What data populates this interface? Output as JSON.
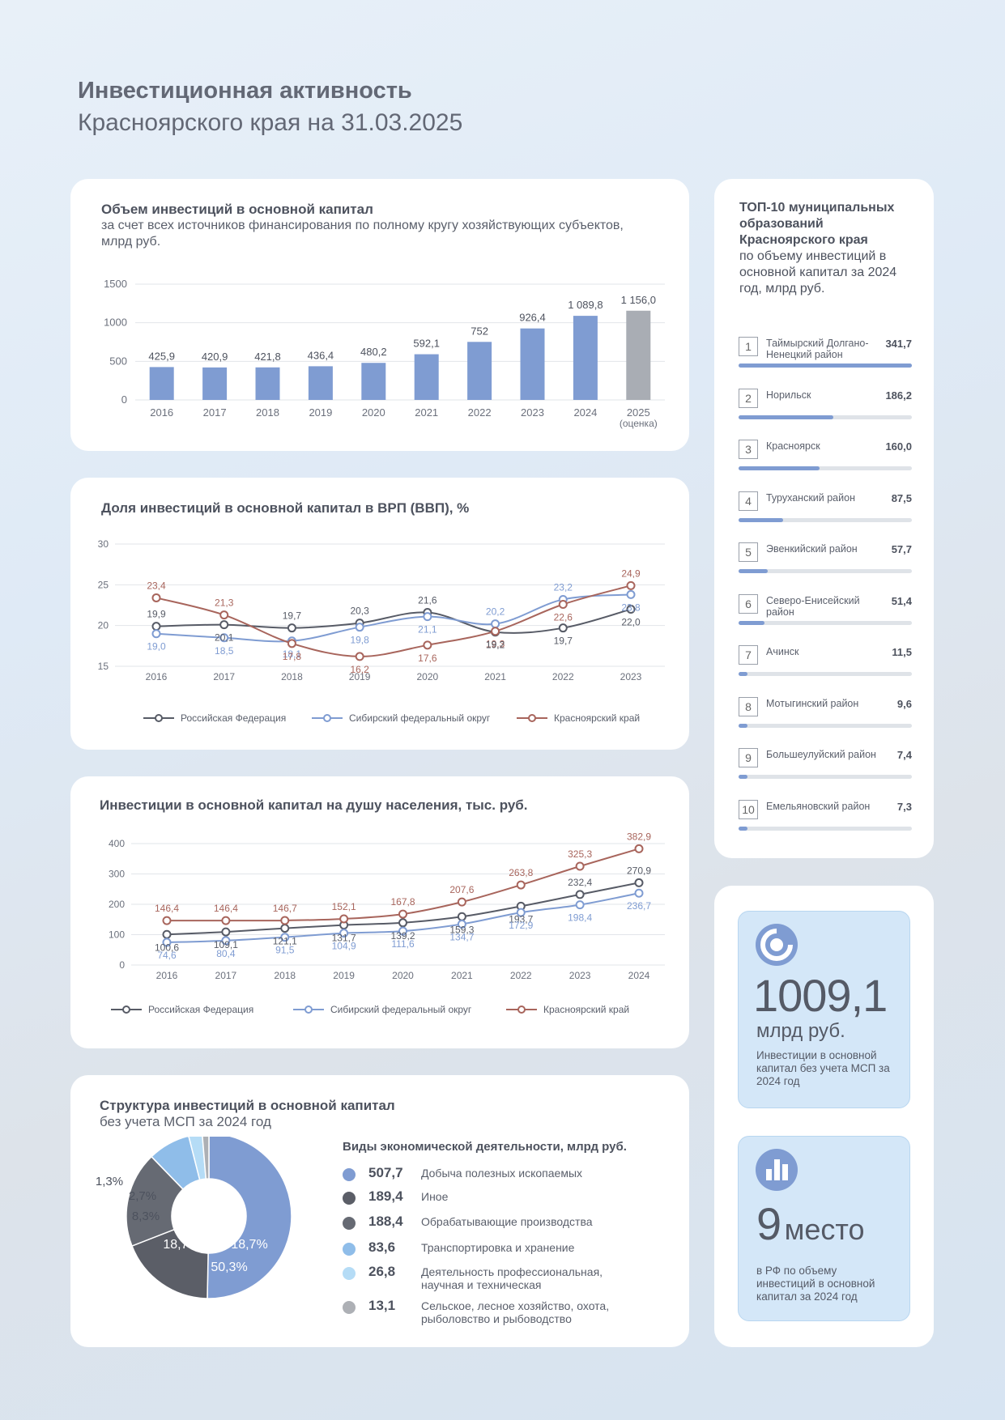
{
  "header": {
    "title_bold": "Инвестиционная активность",
    "title_regular": "Красноярского края на 31.03.2025"
  },
  "colors": {
    "bar": "#7f9cd2",
    "bar_estimate": "#a9adb4",
    "rf": "#575b66",
    "sfo": "#7f9cd2",
    "kk": "#a8655c",
    "pie": [
      "#7f9cd2",
      "#5b5e67",
      "#666a73",
      "#8fbde9",
      "#b5dcf6",
      "#adb0b5"
    ]
  },
  "chart_data": [
    {
      "id": "volume",
      "type": "bar",
      "title": "Объем инвестиций в основной капитал",
      "subtitle": "за счет всех источников финансирования по полному кругу хозяйствующих субъектов, млрд руб.",
      "categories": [
        "2016",
        "2017",
        "2018",
        "2019",
        "2020",
        "2021",
        "2022",
        "2023",
        "2024",
        "2025"
      ],
      "category_notes": [
        "",
        "",
        "",
        "",
        "",
        "",
        "",
        "",
        "",
        "(оценка)"
      ],
      "values": [
        425.9,
        420.9,
        421.8,
        436.4,
        480.2,
        592.1,
        752,
        926.4,
        1089.8,
        1156.0
      ],
      "value_labels": [
        "425,9",
        "420,9",
        "421,8",
        "436,4",
        "480,2",
        "592,1",
        "752",
        "926,4",
        "1 089,8",
        "1 156,0"
      ],
      "ylim": [
        0,
        1500
      ],
      "yticks": [
        0,
        500,
        1000,
        1500
      ],
      "grid": true
    },
    {
      "id": "share",
      "type": "line",
      "title": "Доля инвестиций в основной капитал в ВРП (ВВП), %",
      "x": [
        "2016",
        "2017",
        "2018",
        "2019",
        "2020",
        "2021",
        "2022",
        "2023"
      ],
      "ylim": [
        15,
        30
      ],
      "yticks": [
        15,
        20,
        25,
        30
      ],
      "grid": true,
      "legend": "bottom",
      "series": [
        {
          "name": "Российская Федерация",
          "values": [
            19.9,
            20.1,
            19.7,
            20.3,
            21.6,
            19.2,
            19.7,
            22.0
          ],
          "labels": [
            "19,9",
            "20,1",
            "19,7",
            "20,3",
            "21,6",
            "19,2",
            "19,7",
            "22,0"
          ]
        },
        {
          "name": "Сибирский федеральный округ",
          "values": [
            19.0,
            18.5,
            18.1,
            19.8,
            21.1,
            20.2,
            23.2,
            23.8
          ],
          "labels": [
            "19,0",
            "18,5",
            "18,1",
            "19,8",
            "21,1",
            "20,2",
            "23,2",
            "23,8"
          ]
        },
        {
          "name": "Красноярский край",
          "values": [
            23.4,
            21.3,
            17.8,
            16.2,
            17.6,
            19.3,
            22.6,
            24.9
          ],
          "labels": [
            "23,4",
            "21,3",
            "17,8",
            "16,2",
            "17,6",
            "19,3",
            "22,6",
            "24,9"
          ]
        }
      ]
    },
    {
      "id": "percapita",
      "type": "line",
      "title": "Инвестиции в основной капитал на душу населения, тыс. руб.",
      "x": [
        "2016",
        "2017",
        "2018",
        "2019",
        "2020",
        "2021",
        "2022",
        "2023",
        "2024"
      ],
      "ylim": [
        0,
        400
      ],
      "yticks": [
        0,
        100,
        200,
        300,
        400
      ],
      "grid": true,
      "legend": "bottom",
      "series": [
        {
          "name": "Российская Федерация",
          "values": [
            100.6,
            109.1,
            121.1,
            131.7,
            139.2,
            159.3,
            193.7,
            232.4,
            270.9
          ],
          "labels": [
            "100,6",
            "109,1",
            "121,1",
            "131,7",
            "139,2",
            "159,3",
            "193,7",
            "232,4",
            "270,9"
          ]
        },
        {
          "name": "Сибирский федеральный округ",
          "values": [
            74.6,
            80.4,
            91.5,
            104.9,
            111.6,
            134.7,
            172.9,
            198.4,
            236.7
          ],
          "labels": [
            "74,6",
            "80,4",
            "91,5",
            "104,9",
            "111,6",
            "134,7",
            "172,9",
            "198,4",
            "236,7"
          ]
        },
        {
          "name": "Красноярский край",
          "values": [
            146.4,
            146.4,
            146.7,
            152.1,
            167.8,
            207.6,
            263.8,
            325.3,
            382.9
          ],
          "labels": [
            "146,4",
            "146,4",
            "146,7",
            "152,1",
            "167,8",
            "207,6",
            "263,8",
            "325,3",
            "382,9"
          ]
        }
      ]
    },
    {
      "id": "structure",
      "type": "pie",
      "title": "Структура инвестиций в основной капитал",
      "subtitle": "без учета МСП за 2024 год",
      "legend_title": "Виды экономической деятельности, млрд руб.",
      "slices": [
        {
          "name": "Добыча полезных ископаемых",
          "value": 507.7,
          "value_label": "507,7",
          "percent": 50.3,
          "percent_label": "50,3%"
        },
        {
          "name": "Иное",
          "value": 189.4,
          "value_label": "189,4",
          "percent": 18.7,
          "percent_label": "18,7%"
        },
        {
          "name": "Обрабатывающие производства",
          "value": 188.4,
          "value_label": "188,4",
          "percent": 18.7,
          "percent_label": "18,7%"
        },
        {
          "name": "Транспортировка и хранение",
          "value": 83.6,
          "value_label": "83,6",
          "percent": 8.3,
          "percent_label": "8,3%"
        },
        {
          "name": "Деятельность профессиональная, научная и техническая",
          "value": 26.8,
          "value_label": "26,8",
          "percent": 2.7,
          "percent_label": "2,7%"
        },
        {
          "name": "Сельское, лесное хозяйство, охота, рыболовство и рыбоводство",
          "value": 13.1,
          "value_label": "13,1",
          "percent": 1.3,
          "percent_label": "1,3%"
        }
      ]
    }
  ],
  "top10": {
    "title_bold": "ТОП-10 муниципальных образований Красноярского края",
    "title_regular": "по объему инвестиций в основной капитал за 2024 год, млрд руб.",
    "items": [
      {
        "rank": "1",
        "name": "Таймырский Долгано-Ненецкий район",
        "value": 341.7,
        "value_label": "341,7"
      },
      {
        "rank": "2",
        "name": "Норильск",
        "value": 186.2,
        "value_label": "186,2"
      },
      {
        "rank": "3",
        "name": "Красноярск",
        "value": 160.0,
        "value_label": "160,0"
      },
      {
        "rank": "4",
        "name": "Туруханский район",
        "value": 87.5,
        "value_label": "87,5"
      },
      {
        "rank": "5",
        "name": "Эвенкийский район",
        "value": 57.7,
        "value_label": "57,7"
      },
      {
        "rank": "6",
        "name": "Северо-Енисейский район",
        "value": 51.4,
        "value_label": "51,4"
      },
      {
        "rank": "7",
        "name": "Ачинск",
        "value": 11.5,
        "value_label": "11,5"
      },
      {
        "rank": "8",
        "name": "Мотыгинский район",
        "value": 9.6,
        "value_label": "9,6"
      },
      {
        "rank": "9",
        "name": "Большеулуйский район",
        "value": 7.4,
        "value_label": "7,4"
      },
      {
        "rank": "10",
        "name": "Емельяновский район",
        "value": 7.3,
        "value_label": "7,3"
      }
    ]
  },
  "info_invest": {
    "icon": "pie-chart-icon",
    "value": "1009,1",
    "unit": "млрд руб.",
    "text": "Инвестиции в основной капитал без учета МСП за 2024 год"
  },
  "info_rank": {
    "icon": "bar-chart-icon",
    "value": "9",
    "unit": "место",
    "text": "в РФ по объему инвестиций в основной капитал за 2024 год"
  }
}
